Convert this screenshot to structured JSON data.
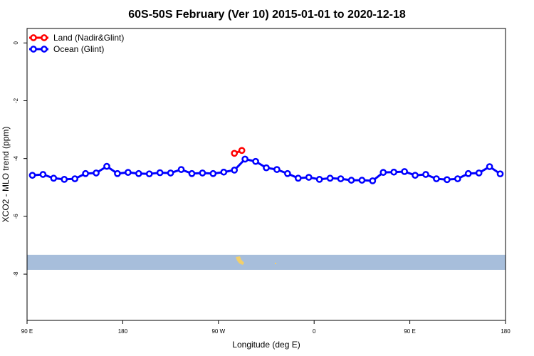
{
  "chart_data": {
    "type": "line",
    "title": "60S-50S February (Ver 10)   2015-01-01 to 2020-12-18",
    "xlabel": "Longitude (deg E)",
    "ylabel": "XCO2 - MLO trend (ppm)",
    "x_ticks": [
      {
        "value": 90,
        "label": "90 E"
      },
      {
        "value": 180,
        "label": "180"
      },
      {
        "value": 270,
        "label": "90 W"
      },
      {
        "value": 360,
        "label": "0"
      },
      {
        "value": 450,
        "label": "90 E"
      },
      {
        "value": 540,
        "label": "180"
      }
    ],
    "y_ticks": [
      {
        "value": 0,
        "label": "0"
      },
      {
        "value": -2,
        "label": "-2"
      },
      {
        "value": -4,
        "label": "-4"
      },
      {
        "value": -6,
        "label": "-6"
      },
      {
        "value": -8,
        "label": "-8"
      }
    ],
    "xlim": [
      90,
      540
    ],
    "ylim": [
      -9.6,
      0.5
    ],
    "grid": false,
    "legend_position": "top-left",
    "map_strip": {
      "y_min": -7.85,
      "y_max": -7.33,
      "color": "#a7bedb",
      "land_color": "#f2cf6a"
    },
    "series": [
      {
        "name": "Land (Nadir&Glint)",
        "color": "#ff0000",
        "x": [
          285,
          292
        ],
        "y": [
          -3.82,
          -3.72
        ]
      },
      {
        "name": "Ocean (Glint)",
        "color": "#0000ff",
        "x": [
          95,
          105,
          115,
          125,
          135,
          145,
          155,
          165,
          175,
          185,
          195,
          205,
          215,
          225,
          235,
          245,
          255,
          265,
          275,
          285,
          295,
          305,
          315,
          325,
          335,
          345,
          355,
          365,
          375,
          385,
          395,
          405,
          415,
          425,
          435,
          445,
          455,
          465,
          475,
          485,
          495,
          505,
          515,
          525,
          535
        ],
        "y": [
          -4.58,
          -4.55,
          -4.68,
          -4.72,
          -4.7,
          -4.52,
          -4.5,
          -4.27,
          -4.52,
          -4.48,
          -4.52,
          -4.53,
          -4.49,
          -4.5,
          -4.38,
          -4.52,
          -4.5,
          -4.52,
          -4.47,
          -4.4,
          -4.02,
          -4.1,
          -4.32,
          -4.38,
          -4.52,
          -4.68,
          -4.65,
          -4.72,
          -4.68,
          -4.7,
          -4.75,
          -4.75,
          -4.77,
          -4.48,
          -4.47,
          -4.45,
          -4.58,
          -4.55,
          -4.7,
          -4.73,
          -4.7,
          -4.52,
          -4.5,
          -4.28,
          -4.53
        ]
      }
    ]
  }
}
